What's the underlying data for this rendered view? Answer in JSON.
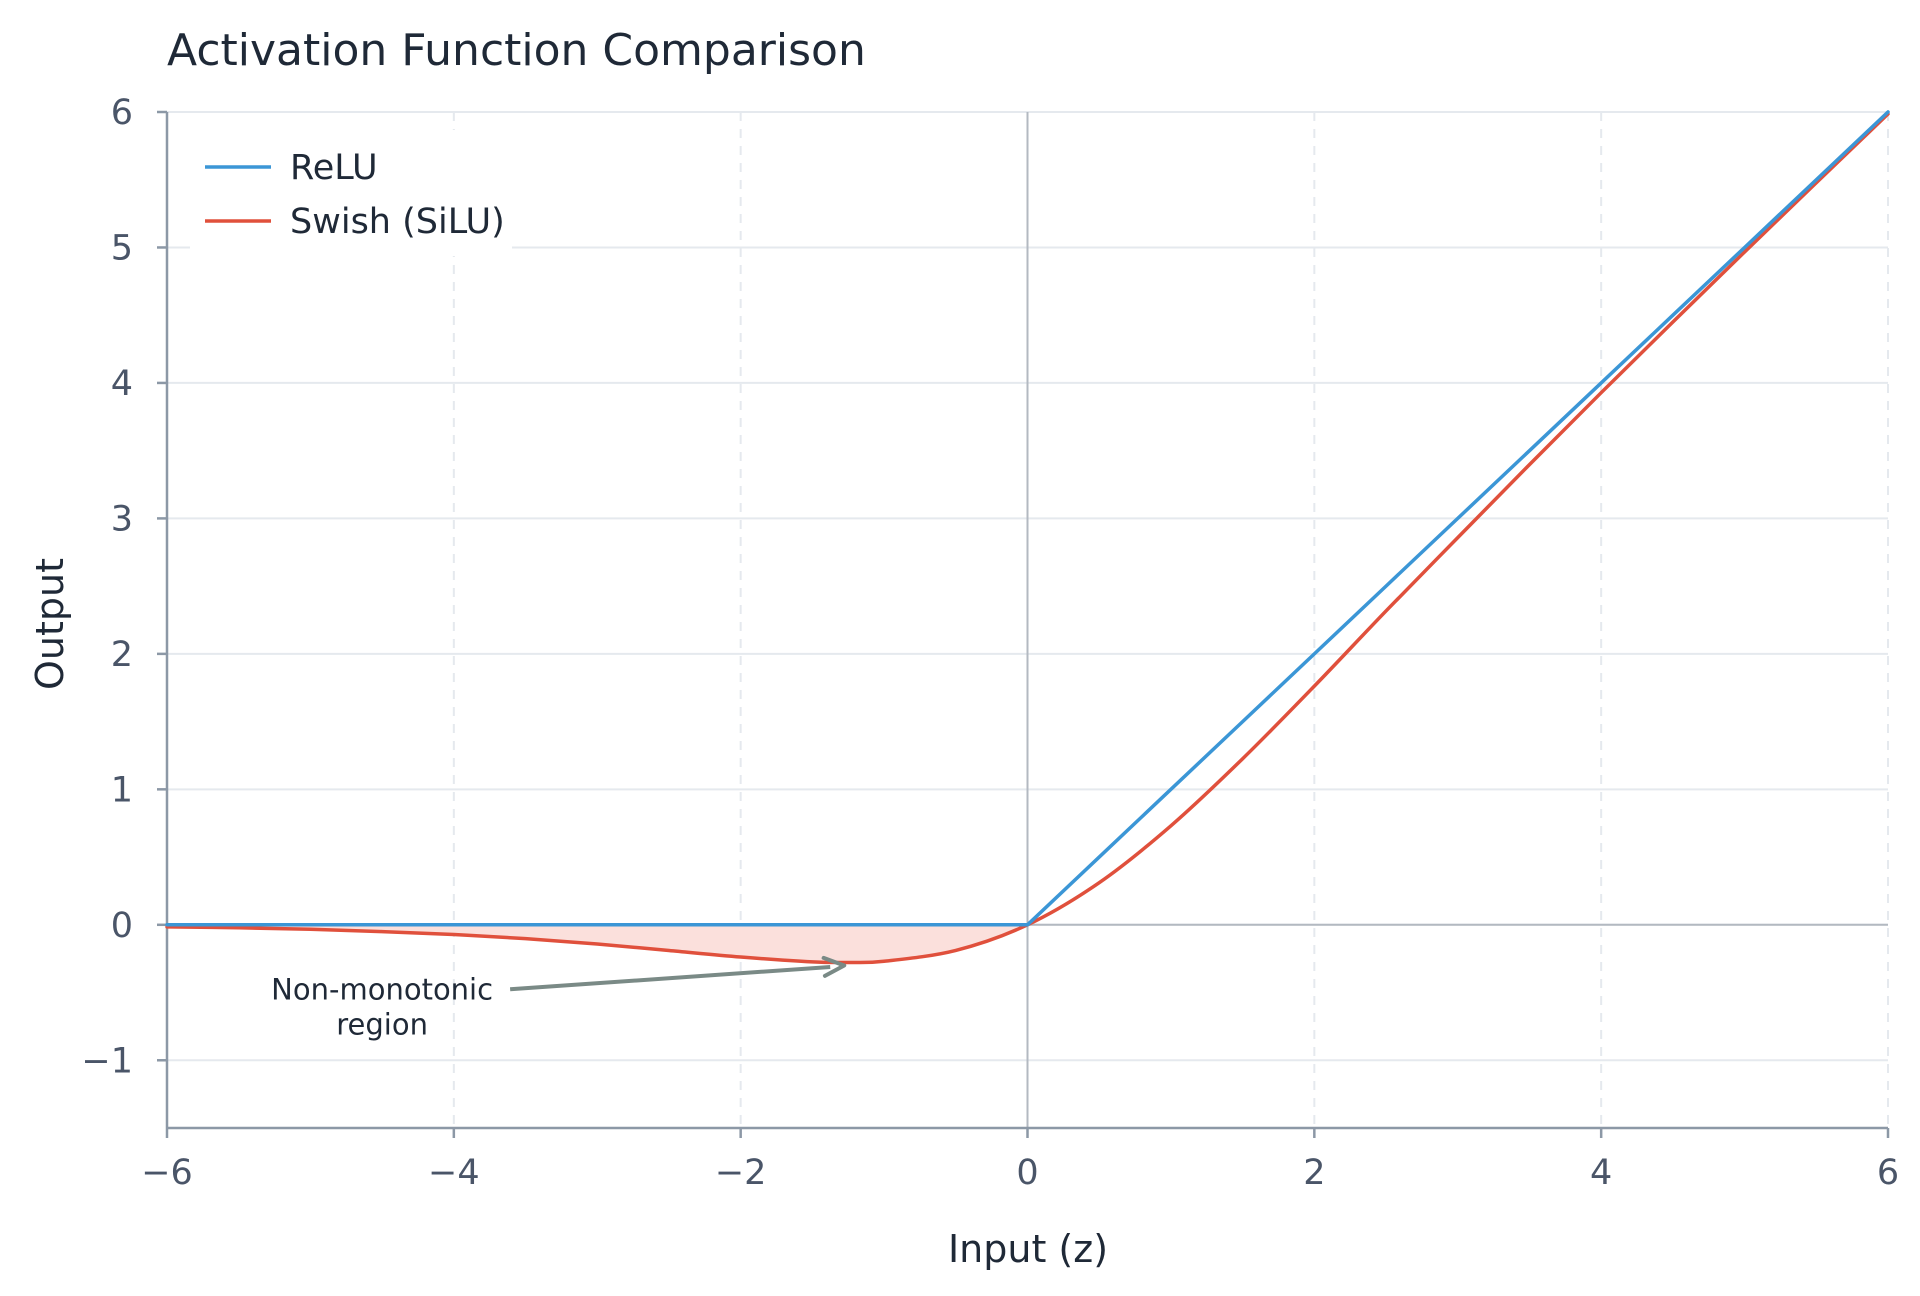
{
  "chart_data": {
    "type": "line",
    "title": "Activation Function Comparison",
    "xlabel": "Input (z)",
    "ylabel": "Output",
    "xlim": [
      -6,
      6
    ],
    "ylim": [
      -1.5,
      6
    ],
    "xticks": [
      -6,
      -4,
      -2,
      0,
      2,
      4,
      6
    ],
    "xtick_labels": [
      "−6",
      "−4",
      "−2",
      "0",
      "2",
      "4",
      "6"
    ],
    "yticks": [
      -1,
      0,
      1,
      2,
      3,
      4,
      5,
      6
    ],
    "ytick_labels": [
      "−1",
      "0",
      "1",
      "2",
      "3",
      "4",
      "5",
      "6"
    ],
    "grid": true,
    "legend_position": "top-left",
    "x": [
      -6,
      -5.5,
      -5,
      -4.5,
      -4,
      -3.5,
      -3,
      -2.5,
      -2,
      -1.5,
      -1.25,
      -1,
      -0.5,
      0,
      0.5,
      1,
      1.5,
      2,
      2.5,
      3,
      3.5,
      4,
      4.5,
      5,
      5.5,
      6
    ],
    "series": [
      {
        "name": "ReLU",
        "color": "#3b96d6",
        "values": [
          0,
          0,
          0,
          0,
          0,
          0,
          0,
          0,
          0,
          0,
          0,
          0,
          0,
          0,
          0.5,
          1,
          1.5,
          2,
          2.5,
          3,
          3.5,
          4,
          4.5,
          5,
          5.5,
          6
        ]
      },
      {
        "name": "Swish (SiLU)",
        "color": "#e0503c",
        "values": [
          -0.015,
          -0.022,
          -0.033,
          -0.05,
          -0.072,
          -0.102,
          -0.142,
          -0.19,
          -0.238,
          -0.274,
          -0.278,
          -0.269,
          -0.189,
          0,
          0.311,
          0.731,
          1.226,
          1.762,
          2.317,
          2.858,
          3.397,
          3.928,
          4.45,
          4.967,
          5.478,
          5.985
        ]
      }
    ],
    "shaded_region": {
      "between": [
        "ReLU",
        "Swish (SiLU)"
      ],
      "x_range": [
        -6,
        0
      ],
      "color": "#fbe0dc"
    },
    "annotations": [
      {
        "text_lines": [
          "Non-monotonic",
          "region"
        ],
        "points_to": [
          -1.25,
          -0.278
        ],
        "text_at": [
          -4.5,
          -0.55
        ],
        "arrow_color": "#7a8a86"
      }
    ],
    "colors": {
      "grid": "#e5e9ee",
      "axis": "#8c98a6",
      "zero_line": "#b3b9c1"
    }
  }
}
